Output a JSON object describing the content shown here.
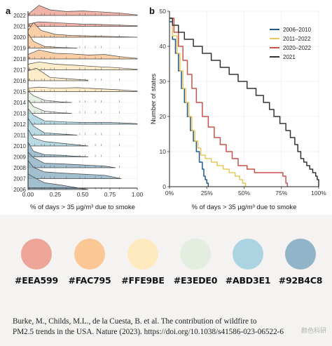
{
  "chart_data": [
    {
      "type": "area",
      "panel_label": "a",
      "xlabel": "% of days > 35 µg/m³ due to smoke",
      "ylabel": "",
      "xlim": [
        0,
        1
      ],
      "xticks": [
        "0.00",
        "0.25",
        "0.50",
        "0.75",
        "1.00"
      ],
      "grid": true,
      "categories": [
        "2022",
        "2021",
        "2020",
        "2019",
        "2018",
        "2017",
        "2016",
        "2015",
        "2014",
        "2013",
        "2012",
        "2011",
        "2010",
        "2009",
        "2008",
        "2007",
        "2006"
      ],
      "series_colors": {
        "2022": "#EEA599",
        "2021": "#EEA599",
        "2020": "#FAC795",
        "2019": "#FAC795",
        "2018": "#FAC795",
        "2017": "#FFE9BE",
        "2016": "#FFE9BE",
        "2015": "#FFE9BE",
        "2014": "#E3EDE0",
        "2013": "#E3EDE0",
        "2012": "#ABD3E1",
        "2011": "#ABD3E1",
        "2010": "#ABD3E1",
        "2009": "#92B4C8",
        "2008": "#92B4C8",
        "2007": "#92B4C8",
        "2006": "#92B4C8"
      },
      "densities": {
        "2022": [
          [
            0.0,
            0.1
          ],
          [
            0.1,
            0.9
          ],
          [
            0.2,
            0.5
          ],
          [
            0.35,
            0.35
          ],
          [
            0.5,
            0.4
          ],
          [
            0.7,
            0.3
          ],
          [
            0.85,
            0.2
          ],
          [
            1.0,
            0.05
          ]
        ],
        "2021": [
          [
            0.0,
            0.2
          ],
          [
            0.1,
            0.4
          ],
          [
            0.3,
            0.3
          ],
          [
            0.5,
            0.2
          ],
          [
            0.7,
            0.15
          ],
          [
            1.0,
            0.05
          ]
        ],
        "2020": [
          [
            0.0,
            0.6
          ],
          [
            0.05,
            1.3
          ],
          [
            0.12,
            0.6
          ],
          [
            0.25,
            0.25
          ],
          [
            0.4,
            0.15
          ],
          [
            0.6,
            0.1
          ],
          [
            0.8,
            0.05
          ],
          [
            1.0,
            0.0
          ]
        ],
        "2019": [
          [
            0.0,
            1.3
          ],
          [
            0.05,
            0.6
          ],
          [
            0.15,
            0.15
          ],
          [
            0.3,
            0.05
          ],
          [
            0.45,
            0.0
          ]
        ],
        "2018": [
          [
            0.0,
            0.4
          ],
          [
            0.1,
            0.8
          ],
          [
            0.25,
            0.5
          ],
          [
            0.4,
            0.45
          ],
          [
            0.55,
            0.35
          ],
          [
            0.7,
            0.4
          ],
          [
            0.85,
            0.2
          ],
          [
            1.0,
            0.05
          ]
        ],
        "2017": [
          [
            0.0,
            0.5
          ],
          [
            0.1,
            0.7
          ],
          [
            0.25,
            0.5
          ],
          [
            0.45,
            0.4
          ],
          [
            0.6,
            0.3
          ],
          [
            0.8,
            0.2
          ],
          [
            1.0,
            0.05
          ]
        ],
        "2016": [
          [
            0.0,
            0.9
          ],
          [
            0.08,
            1.1
          ],
          [
            0.2,
            0.3
          ],
          [
            0.4,
            0.15
          ],
          [
            0.55,
            0.05
          ]
        ],
        "2015": [
          [
            0.0,
            0.3
          ],
          [
            0.1,
            0.4
          ],
          [
            0.25,
            0.3
          ],
          [
            0.45,
            0.35
          ],
          [
            0.65,
            0.25
          ],
          [
            0.85,
            0.15
          ],
          [
            1.0,
            0.05
          ]
        ],
        "2014": [
          [
            0.0,
            1.0
          ],
          [
            0.05,
            0.6
          ],
          [
            0.15,
            0.2
          ],
          [
            0.3,
            0.05
          ],
          [
            0.4,
            0.0
          ]
        ],
        "2013": [
          [
            0.0,
            1.2
          ],
          [
            0.05,
            0.6
          ],
          [
            0.15,
            0.2
          ],
          [
            0.3,
            0.05
          ],
          [
            0.4,
            0.0
          ]
        ],
        "2012": [
          [
            0.0,
            1.4
          ],
          [
            0.05,
            0.8
          ],
          [
            0.15,
            0.3
          ],
          [
            0.35,
            0.2
          ],
          [
            0.55,
            0.15
          ],
          [
            0.75,
            0.15
          ],
          [
            0.9,
            0.1
          ],
          [
            1.0,
            0.05
          ]
        ],
        "2011": [
          [
            0.0,
            1.5
          ],
          [
            0.05,
            0.8
          ],
          [
            0.15,
            0.2
          ],
          [
            0.3,
            0.1
          ],
          [
            0.45,
            0.0
          ]
        ],
        "2010": [
          [
            0.0,
            1.5
          ],
          [
            0.05,
            0.7
          ],
          [
            0.15,
            0.4
          ],
          [
            0.3,
            0.25
          ],
          [
            0.45,
            0.1
          ],
          [
            0.55,
            0.0
          ]
        ],
        "2009": [
          [
            0.0,
            1.3
          ],
          [
            0.05,
            0.5
          ],
          [
            0.15,
            0.2
          ],
          [
            0.3,
            0.15
          ],
          [
            0.45,
            0.05
          ],
          [
            0.55,
            0.0
          ]
        ],
        "2008": [
          [
            0.0,
            1.4
          ],
          [
            0.05,
            0.9
          ],
          [
            0.15,
            0.4
          ],
          [
            0.3,
            0.35
          ],
          [
            0.5,
            0.25
          ],
          [
            0.7,
            0.15
          ],
          [
            0.8,
            0.0
          ]
        ],
        "2007": [
          [
            0.0,
            1.6
          ],
          [
            0.05,
            1.0
          ],
          [
            0.15,
            0.6
          ],
          [
            0.3,
            0.5
          ],
          [
            0.5,
            0.4
          ],
          [
            0.7,
            0.3
          ],
          [
            0.85,
            0.0
          ]
        ],
        "2006": [
          [
            0.0,
            1.4
          ],
          [
            0.05,
            1.1
          ],
          [
            0.15,
            0.6
          ],
          [
            0.3,
            0.4
          ],
          [
            0.45,
            0.15
          ],
          [
            0.55,
            0.0
          ]
        ]
      }
    },
    {
      "type": "line",
      "panel_label": "b",
      "xlabel": "% of days > 35 µg/m³ due to smoke",
      "ylabel": "Number of states",
      "xlim": [
        0,
        100
      ],
      "ylim": [
        0,
        50
      ],
      "xticks": [
        "0%",
        "25%",
        "50%",
        "75%",
        "100%"
      ],
      "yticks": [
        "0",
        "10",
        "20",
        "30",
        "40",
        "50"
      ],
      "grid": true,
      "legend_position": "top-right",
      "series": [
        {
          "name": "2006–2010",
          "color": "#1f5a8a",
          "points": [
            [
              0,
              47
            ],
            [
              2,
              42
            ],
            [
              4,
              38
            ],
            [
              6,
              33
            ],
            [
              8,
              28
            ],
            [
              10,
              24
            ],
            [
              12,
              20
            ],
            [
              14,
              16
            ],
            [
              16,
              13
            ],
            [
              18,
              10
            ],
            [
              20,
              7
            ],
            [
              22,
              5
            ],
            [
              23,
              3
            ],
            [
              24,
              2
            ],
            [
              25,
              1
            ],
            [
              26,
              0
            ]
          ]
        },
        {
          "name": "2011–2022",
          "color": "#e8c85a",
          "points": [
            [
              0,
              48
            ],
            [
              2,
              43
            ],
            [
              5,
              38
            ],
            [
              7,
              33
            ],
            [
              9,
              28
            ],
            [
              11,
              24
            ],
            [
              13,
              20
            ],
            [
              15,
              16
            ],
            [
              17,
              13
            ],
            [
              19,
              11
            ],
            [
              21,
              9
            ],
            [
              24,
              8
            ],
            [
              28,
              7
            ],
            [
              32,
              6
            ],
            [
              36,
              5
            ],
            [
              40,
              4
            ],
            [
              44,
              3
            ],
            [
              47,
              2
            ],
            [
              49,
              1
            ],
            [
              51,
              0
            ]
          ]
        },
        {
          "name": "2020–2022",
          "color": "#c9524a",
          "points": [
            [
              0,
              48
            ],
            [
              3,
              44
            ],
            [
              6,
              40
            ],
            [
              9,
              36
            ],
            [
              12,
              32
            ],
            [
              15,
              28
            ],
            [
              18,
              24
            ],
            [
              22,
              20
            ],
            [
              26,
              17
            ],
            [
              30,
              14
            ],
            [
              34,
              12
            ],
            [
              38,
              10
            ],
            [
              42,
              8
            ],
            [
              46,
              6
            ],
            [
              52,
              5
            ],
            [
              57,
              4
            ],
            [
              70,
              4
            ],
            [
              76,
              3
            ],
            [
              78,
              1
            ],
            [
              79,
              0
            ]
          ]
        },
        {
          "name": "2021",
          "color": "#333333",
          "points": [
            [
              0,
              48
            ],
            [
              2,
              46
            ],
            [
              6,
              44
            ],
            [
              10,
              42
            ],
            [
              16,
              40
            ],
            [
              22,
              38
            ],
            [
              28,
              36
            ],
            [
              34,
              34
            ],
            [
              40,
              32
            ],
            [
              46,
              30
            ],
            [
              52,
              28
            ],
            [
              58,
              26
            ],
            [
              63,
              24
            ],
            [
              67,
              22
            ],
            [
              70,
              20
            ],
            [
              74,
              18
            ],
            [
              78,
              16
            ],
            [
              81,
              14
            ],
            [
              84,
              12
            ],
            [
              86,
              10
            ],
            [
              88,
              8
            ],
            [
              90,
              7
            ],
            [
              92,
              6
            ],
            [
              94,
              5
            ],
            [
              96,
              4
            ],
            [
              98,
              3
            ],
            [
              99,
              2
            ],
            [
              100,
              0
            ]
          ]
        }
      ]
    }
  ],
  "palette": [
    {
      "hex": "#EEA599",
      "label": "#EEA599"
    },
    {
      "hex": "#FAC795",
      "label": "#FAC795"
    },
    {
      "hex": "#FFE9BE",
      "label": "#FFE9BE"
    },
    {
      "hex": "#E3EDE0",
      "label": "#E3EDE0"
    },
    {
      "hex": "#ABD3E1",
      "label": "#ABD3E1"
    },
    {
      "hex": "#92B4C8",
      "label": "#92B4C8"
    }
  ],
  "citation": {
    "line1": "Burke, M., Childs, M.L., de la Cuesta, B. et al. The contribution of wildfire to",
    "line2": "PM2.5 trends in the USA. Nature (2023). https://doi.org/10.1038/s41586-023-06522-6"
  },
  "watermark": "颜色科研"
}
